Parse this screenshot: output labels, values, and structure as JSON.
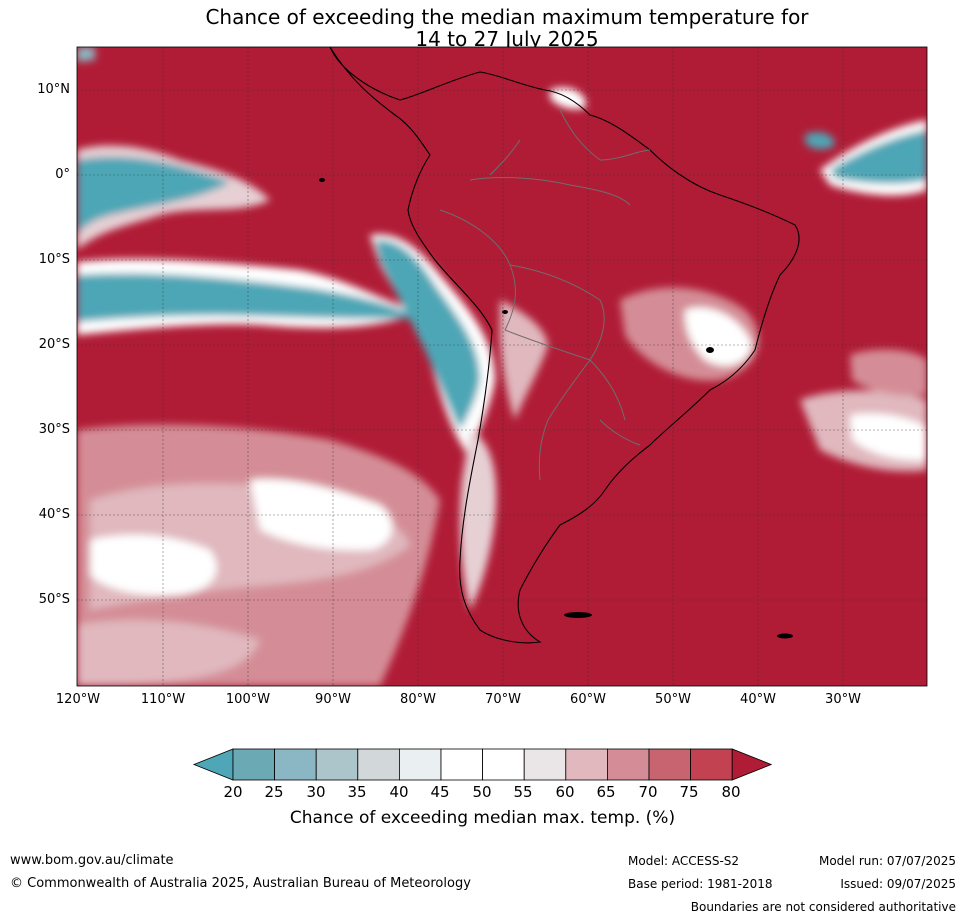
{
  "title": {
    "line1": "Chance of exceeding the median maximum temperature for",
    "line2": "14 to 27 July 2025"
  },
  "map": {
    "lat_labels": [
      "10°N",
      "0°",
      "10°S",
      "20°S",
      "30°S",
      "40°S",
      "50°S"
    ],
    "lon_labels": [
      "120°W",
      "110°W",
      "100°W",
      "90°W",
      "80°W",
      "70°W",
      "60°W",
      "50°W",
      "40°W",
      "30°W"
    ],
    "dominant_color": "#b01c36",
    "cool_color": "#4ea6b6"
  },
  "colorbar": {
    "levels": [
      "20",
      "25",
      "30",
      "35",
      "40",
      "45",
      "50",
      "55",
      "60",
      "65",
      "70",
      "75",
      "80"
    ],
    "colors": [
      "#4ea6b6",
      "#6ba9b4",
      "#8ab7c3",
      "#abc5ca",
      "#d2d8da",
      "#eaf0f2",
      "#ffffff",
      "#ffffff",
      "#eae6e7",
      "#e0b8be",
      "#d48d96",
      "#c76470",
      "#c24252",
      "#b01c36"
    ],
    "label": "Chance of exceeding median max. temp. (%)"
  },
  "footer": {
    "website": "www.bom.gov.au/climate",
    "copyright": "© Commonwealth of Australia 2025, Australian Bureau of Meteorology",
    "model": "Model: ACCESS-S2",
    "base_period": "Base period: 1981-2018",
    "model_run": "Model run: 07/07/2025",
    "issued": "Issued: 09/07/2025",
    "disclaimer": "Boundaries are not considered authoritative"
  }
}
